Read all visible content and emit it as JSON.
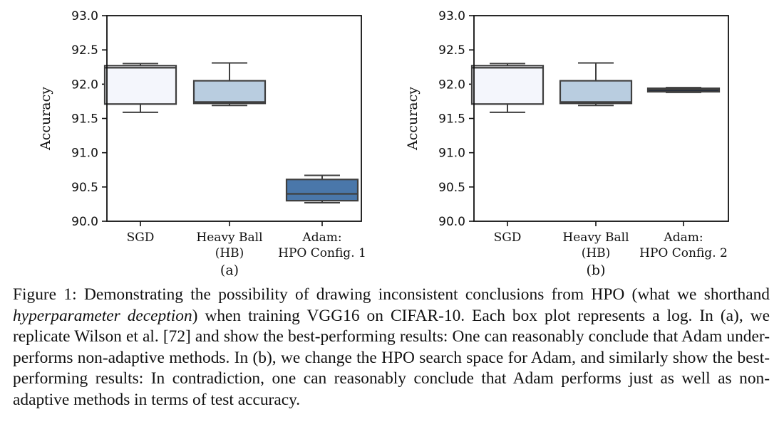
{
  "chart_data": [
    {
      "type": "box",
      "panel_label": "(a)",
      "ylabel": "Accuracy",
      "ylim": [
        90.0,
        93.0
      ],
      "yticks": [
        "90.0",
        "90.5",
        "91.0",
        "91.5",
        "92.0",
        "92.5",
        "93.0"
      ],
      "categories": [
        {
          "lines": [
            "SGD"
          ]
        },
        {
          "lines": [
            "Heavy Ball",
            "(HB)"
          ]
        },
        {
          "lines": [
            "Adam:",
            "HPO Config. 1"
          ]
        }
      ],
      "boxes": [
        {
          "name": "SGD",
          "whisker_low": 91.59,
          "q1": 91.71,
          "median": 92.24,
          "q3": 92.27,
          "whisker_high": 92.3,
          "color": "#f4f6fc"
        },
        {
          "name": "Heavy Ball (HB)",
          "whisker_low": 91.69,
          "q1": 91.72,
          "median": 91.74,
          "q3": 92.05,
          "whisker_high": 92.31,
          "color": "#b9cde0"
        },
        {
          "name": "Adam: HPO Config. 1",
          "whisker_low": 90.27,
          "q1": 90.3,
          "median": 90.4,
          "q3": 90.61,
          "whisker_high": 90.67,
          "color": "#4a77aa"
        }
      ]
    },
    {
      "type": "box",
      "panel_label": "(b)",
      "ylabel": "Accuracy",
      "ylim": [
        90.0,
        93.0
      ],
      "yticks": [
        "90.0",
        "90.5",
        "91.0",
        "91.5",
        "92.0",
        "92.5",
        "93.0"
      ],
      "categories": [
        {
          "lines": [
            "SGD"
          ]
        },
        {
          "lines": [
            "Heavy Ball",
            "(HB)"
          ]
        },
        {
          "lines": [
            "Adam:",
            "HPO Config. 2"
          ]
        }
      ],
      "boxes": [
        {
          "name": "SGD",
          "whisker_low": 91.59,
          "q1": 91.71,
          "median": 92.24,
          "q3": 92.27,
          "whisker_high": 92.3,
          "color": "#f4f6fc"
        },
        {
          "name": "Heavy Ball (HB)",
          "whisker_low": 91.69,
          "q1": 91.72,
          "median": 91.74,
          "q3": 92.05,
          "whisker_high": 92.31,
          "color": "#b9cde0"
        },
        {
          "name": "Adam: HPO Config. 2",
          "whisker_low": 91.88,
          "q1": 91.89,
          "median": 91.92,
          "q3": 91.94,
          "whisker_high": 91.95,
          "color": "#16253d"
        }
      ]
    }
  ],
  "caption": {
    "label": "Figure 1:",
    "part1": "Demonstrating the possibility of drawing inconsistent conclusions from HPO (what we shorthand",
    "emphasis": "hyperparameter deception",
    "part2": ") when training VGG16 on CIFAR-10. Each box plot represents a log. In (a), we replicate Wilson et al. [72] and show the best-performing results: One can reasonably conclude that Adam under-performs non-adaptive methods. In (b), we change the HPO search space for Adam, and similarly show the best-performing results: In contradiction, one can reasonably conclude that Adam performs just as well as non-adaptive methods in terms of test accuracy."
  }
}
